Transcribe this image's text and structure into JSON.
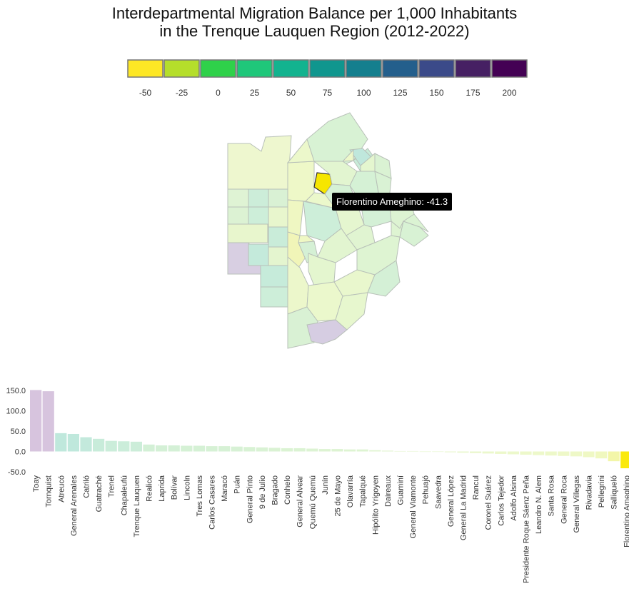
{
  "title_line1": "Interdepartmental Migration Balance per 1,000 Inhabitants",
  "title_line2": "in the Trenque Lauquen Region (2012-2022)",
  "tooltip": {
    "department": "Florentino Ameghino",
    "value": -41.3,
    "text": "Florentino Ameghino: -41.3"
  },
  "chart_data": {
    "type": "bar",
    "colorbar": {
      "ticks": [
        "-50",
        "-25",
        "0",
        "25",
        "50",
        "75",
        "100",
        "125",
        "150",
        "175",
        "200"
      ],
      "colors": [
        "#fde725",
        "#b5de2b",
        "#2fd14a",
        "#1fc77a",
        "#13b38f",
        "#10968e",
        "#147f8e",
        "#245f8c",
        "#3b4a89",
        "#462063",
        "#440154"
      ]
    },
    "ylim": [
      -50,
      150
    ],
    "yticks": [
      "150.0",
      "100.0",
      "50.0",
      "0.0",
      "-50.0"
    ],
    "ytick_values": [
      150,
      100,
      50,
      0,
      -50
    ],
    "categories": [
      "Toay",
      "Tornquist",
      "Atreucó",
      "General Arenales",
      "Catriló",
      "Guatraché",
      "Trenel",
      "Chapaleufú",
      "Trenque Lauquen",
      "Realicó",
      "Laprida",
      "Bolívar",
      "Lincoln",
      "Tres Lomas",
      "Carlos Casares",
      "Maracó",
      "Puán",
      "General Pinto",
      "9 de Julio",
      "Bragado",
      "Conhelo",
      "General Alvear",
      "Quemú Quemú",
      "Junín",
      "25 de Mayo",
      "Olavarría",
      "Tapalqué",
      "Hipólito Yrigoyen",
      "Daireaux",
      "Guaminí",
      "General Viamonte",
      "Pehuajó",
      "Saavedra",
      "General López",
      "General La Madrid",
      "Rancul",
      "Coronel Suárez",
      "Carlos Tejedor",
      "Adolfo Alsina",
      "Presidente Roque Sáenz Peña",
      "Leandro N. Alem",
      "Santa Rosa",
      "General Roca",
      "General Villegas",
      "Rivadavia",
      "Pellegrini",
      "Salliqueló",
      "Florentino Ameghino"
    ],
    "values": [
      151,
      148,
      45,
      43,
      35,
      31,
      26,
      25,
      24,
      17,
      15,
      15,
      14,
      14,
      13,
      13,
      12,
      11,
      10,
      9,
      8,
      8,
      7,
      6,
      6,
      5,
      5,
      3,
      2,
      1,
      1,
      0,
      -1,
      -2,
      -3,
      -4,
      -5,
      -6,
      -7,
      -8,
      -9,
      -10,
      -11,
      -12,
      -14,
      -17,
      -24,
      -41.3
    ],
    "colors": [
      "#d7c4de",
      "#d7c4de",
      "#bfe8dc",
      "#bfe8dc",
      "#c3e9dc",
      "#c8ecda",
      "#cbedda",
      "#cbedda",
      "#ccedd9",
      "#d3f0d6",
      "#d4f0d6",
      "#d4f0d6",
      "#d5f1d5",
      "#d5f1d5",
      "#d6f1d5",
      "#d6f1d5",
      "#d7f1d5",
      "#d8f2d4",
      "#d9f2d4",
      "#daf2d3",
      "#dbf3d3",
      "#dbf3d3",
      "#dcf3d3",
      "#ddf3d2",
      "#ddf3d2",
      "#def4d2",
      "#def4d2",
      "#e0f4d1",
      "#e2f5d0",
      "#e4f6cf",
      "#e4f6cf",
      "#e6f7ce",
      "#e7f7ce",
      "#e8f7cd",
      "#e9f7cd",
      "#eaf7cc",
      "#ebf8cc",
      "#ecf8cb",
      "#ecf8cb",
      "#edf8ca",
      "#edf8ca",
      "#edf8c9",
      "#eef8c8",
      "#eef8c7",
      "#eff8c4",
      "#f0f8bf",
      "#f3f6a8",
      "#fae90e"
    ]
  }
}
